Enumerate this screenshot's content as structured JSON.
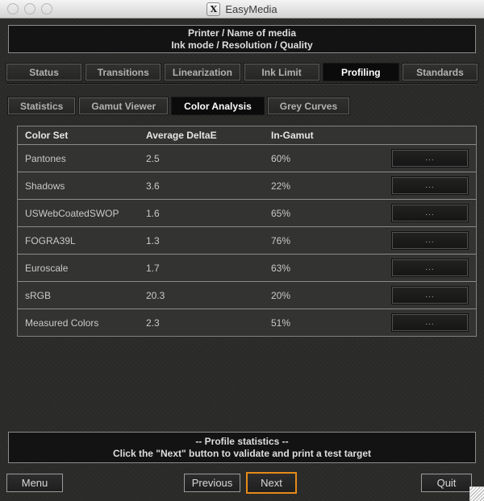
{
  "titlebar": {
    "title": "EasyMedia",
    "x11_icon_letter": "X"
  },
  "header": {
    "line1": "Printer / Name of media",
    "line2": "Ink mode / Resolution / Quality"
  },
  "main_tabs": [
    {
      "label": "Status",
      "active": false
    },
    {
      "label": "Transitions",
      "active": false
    },
    {
      "label": "Linearization",
      "active": false
    },
    {
      "label": "Ink Limit",
      "active": false
    },
    {
      "label": "Profiling",
      "active": true
    },
    {
      "label": "Standards",
      "active": false
    }
  ],
  "sub_tabs": [
    {
      "label": "Statistics",
      "active": false
    },
    {
      "label": "Gamut Viewer",
      "active": false
    },
    {
      "label": "Color Analysis",
      "active": true
    },
    {
      "label": "Grey Curves",
      "active": false
    }
  ],
  "table": {
    "columns": [
      "Color Set",
      "Average DeltaE",
      "In-Gamut"
    ],
    "row_button_label": "...",
    "rows": [
      {
        "color_set": "Pantones",
        "average_deltae": "2.5",
        "in_gamut": "60%"
      },
      {
        "color_set": "Shadows",
        "average_deltae": "3.6",
        "in_gamut": "22%"
      },
      {
        "color_set": "USWebCoatedSWOP",
        "average_deltae": "1.6",
        "in_gamut": "65%"
      },
      {
        "color_set": "FOGRA39L",
        "average_deltae": "1.3",
        "in_gamut": "76%"
      },
      {
        "color_set": "Euroscale",
        "average_deltae": "1.7",
        "in_gamut": "63%"
      },
      {
        "color_set": "sRGB",
        "average_deltae": "20.3",
        "in_gamut": "20%"
      },
      {
        "color_set": "Measured Colors",
        "average_deltae": "2.3",
        "in_gamut": "51%"
      }
    ]
  },
  "status_box": {
    "line1": "-- Profile statistics --",
    "line2": "Click the \"Next\" button to validate and print a test target"
  },
  "footer": {
    "menu_label": "Menu",
    "previous_label": "Previous",
    "next_label": "Next",
    "quit_label": "Quit"
  },
  "colors": {
    "next_button_highlight": "#e68a19",
    "active_tab_bg": "#0b0b0b",
    "window_bg": "#2b2b29",
    "panel_bg": "#131313"
  }
}
